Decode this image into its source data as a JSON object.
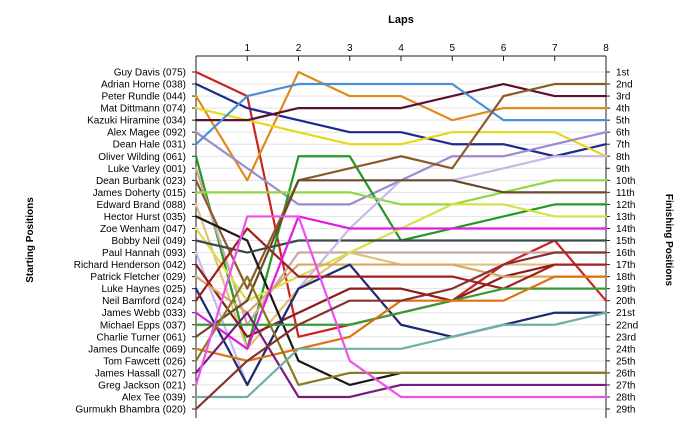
{
  "chart_data": {
    "type": "line",
    "title": "Laps",
    "ylabel_left": "Starting Positions",
    "ylabel_right": "Finishing Positions",
    "laps": [
      1,
      2,
      3,
      4,
      5,
      6,
      7,
      8
    ],
    "finish_labels": [
      "1st",
      "2nd",
      "3rd",
      "4th",
      "5th",
      "6th",
      "7th",
      "8th",
      "9th",
      "10th",
      "11th",
      "12th",
      "13th",
      "14th",
      "15th",
      "16th",
      "17th",
      "18th",
      "19th",
      "20th",
      "21st",
      "22nd",
      "23rd",
      "24th",
      "25th",
      "26th",
      "27th",
      "28th",
      "29th"
    ],
    "series": [
      {
        "name": "Guy Davis (075)",
        "color": "#cc2222",
        "positions": [
          1,
          3,
          23,
          22,
          21,
          20,
          17,
          15,
          20
        ]
      },
      {
        "name": "Adrian Horne (038)",
        "color": "#1f2a8c",
        "positions": [
          2,
          4,
          5,
          6,
          6,
          7,
          7,
          8,
          7
        ]
      },
      {
        "name": "Peter Rundle (044)",
        "color": "#e08a1c",
        "positions": [
          3,
          10,
          1,
          3,
          3,
          5,
          4,
          4,
          4
        ]
      },
      {
        "name": "Mat Dittmann (074)",
        "color": "#e8d81c",
        "positions": [
          4,
          5,
          6,
          7,
          7,
          6,
          6,
          6,
          8
        ]
      },
      {
        "name": "Kazuki Hiramine (034)",
        "color": "#5a1030",
        "positions": [
          5,
          5,
          4,
          4,
          4,
          3,
          2,
          3,
          3
        ]
      },
      {
        "name": "Alex Magee (092)",
        "color": "#9a8ad0",
        "positions": [
          6,
          9,
          12,
          12,
          10,
          8,
          8,
          7,
          6
        ]
      },
      {
        "name": "Dean Hale (031)",
        "color": "#4a90d8",
        "positions": [
          7,
          3,
          2,
          2,
          2,
          2,
          5,
          5,
          5
        ]
      },
      {
        "name": "Oliver Wilding (061)",
        "color": "#229922",
        "positions": [
          8,
          24,
          8,
          8,
          15,
          14,
          13,
          12,
          12
        ]
      },
      {
        "name": "Luke Varley (001)",
        "color": "#c8a8a0",
        "positions": [
          9,
          22,
          16,
          16,
          16,
          16,
          16,
          16,
          16
        ]
      },
      {
        "name": "Dean Burbank (023)",
        "color": "#8b5a2b",
        "positions": [
          10,
          19,
          10,
          9,
          8,
          9,
          3,
          2,
          2
        ]
      },
      {
        "name": "James Doherty (015)",
        "color": "#8fd840",
        "positions": [
          11,
          11,
          11,
          11,
          12,
          12,
          11,
          10,
          10
        ]
      },
      {
        "name": "Edward Brand (088)",
        "color": "#e0c080",
        "positions": [
          12,
          24,
          19,
          16,
          17,
          17,
          17,
          17,
          17
        ]
      },
      {
        "name": "Hector Hurst (035)",
        "color": "#1a1a1a",
        "positions": [
          13,
          15,
          25,
          27,
          26,
          26,
          26,
          26,
          26
        ]
      },
      {
        "name": "Zoe Wenham (047)",
        "color": "#d8e048",
        "positions": [
          14,
          20,
          18,
          16,
          14,
          12,
          12,
          13,
          13
        ]
      },
      {
        "name": "Bobby Neil (049)",
        "color": "#3a4a4a",
        "positions": [
          15,
          16,
          15,
          15,
          15,
          15,
          15,
          15,
          15
        ]
      },
      {
        "name": "Paul Hannah (093)",
        "color": "#c8b8e8",
        "positions": [
          16,
          27,
          19,
          14,
          10,
          10,
          9,
          8,
          8
        ]
      },
      {
        "name": "Richard Henderson (042)",
        "color": "#8b1a1a",
        "positions": [
          17,
          23,
          21,
          19,
          19,
          20,
          18,
          17,
          17
        ]
      },
      {
        "name": "Patrick Fletcher (029)",
        "color": "#d8a860",
        "positions": [
          18,
          21,
          17,
          17,
          17,
          17,
          18,
          18,
          18
        ]
      },
      {
        "name": "Luke Haynes (025)",
        "color": "#1a2a70",
        "positions": [
          19,
          27,
          19,
          17,
          22,
          23,
          22,
          21,
          21
        ]
      },
      {
        "name": "Neil Bamford (024)",
        "color": "#a02020",
        "positions": [
          20,
          14,
          18,
          18,
          18,
          18,
          19,
          17,
          17
        ]
      },
      {
        "name": "James Webb (033)",
        "color": "#e01ce0",
        "positions": [
          21,
          24,
          13,
          14,
          14,
          14,
          14,
          14,
          14
        ]
      },
      {
        "name": "Michael Epps (037)",
        "color": "#3a9a3a",
        "positions": [
          22,
          22,
          22,
          22,
          21,
          20,
          19,
          19,
          19
        ]
      },
      {
        "name": "Charlie Turner (061)",
        "color": "#6a4a2a",
        "positions": [
          23,
          20,
          10,
          10,
          10,
          10,
          11,
          11,
          11
        ]
      },
      {
        "name": "James Duncalfe (069)",
        "color": "#e07010",
        "positions": [
          24,
          25,
          24,
          23,
          20,
          20,
          20,
          18,
          18
        ]
      },
      {
        "name": "Tom Fawcett (026)",
        "color": "#8a7a20",
        "positions": [
          25,
          18,
          27,
          26,
          26,
          26,
          26,
          26,
          26
        ]
      },
      {
        "name": "James Hassall (027)",
        "color": "#7a1a7a",
        "positions": [
          26,
          21,
          28,
          28,
          27,
          27,
          27,
          27,
          27
        ]
      },
      {
        "name": "Greg Jackson (021)",
        "color": "#ed50ed",
        "positions": [
          27,
          13,
          13,
          25,
          28,
          28,
          28,
          28,
          28
        ]
      },
      {
        "name": "Alex Tee (039)",
        "color": "#70b0a8",
        "positions": [
          28,
          28,
          24,
          24,
          24,
          23,
          22,
          22,
          21
        ]
      },
      {
        "name": "Gurmukh Bhambra (020)",
        "color": "#8b3030",
        "positions": [
          29,
          25,
          22,
          20,
          20,
          19,
          17,
          16,
          16
        ]
      }
    ],
    "xlim": [
      0,
      8
    ],
    "ylim": [
      1,
      29
    ],
    "grid": true
  }
}
